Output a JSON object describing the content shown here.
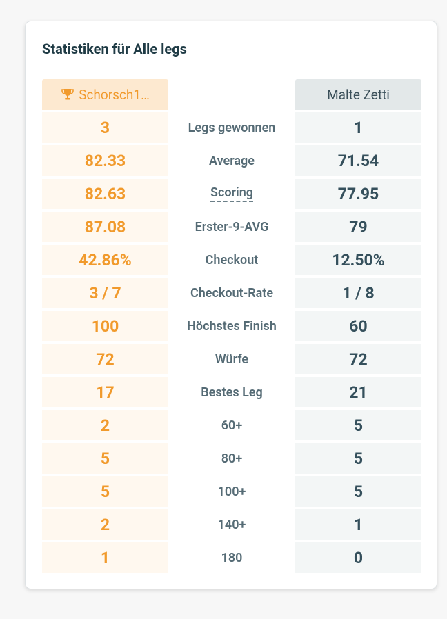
{
  "card": {
    "title": "Statistiken für Alle legs"
  },
  "players": {
    "left": "Schorsch1…",
    "right": "Malte Zetti"
  },
  "rows": [
    {
      "label": "Legs gewonnen",
      "left": "3",
      "right": "1"
    },
    {
      "label": "Average",
      "left": "82.33",
      "right": "71.54"
    },
    {
      "label": "Scoring",
      "left": "82.63",
      "right": "77.95"
    },
    {
      "label": "Erster-9-AVG",
      "left": "87.08",
      "right": "79"
    },
    {
      "label": "Checkout",
      "left": "42.86%",
      "right": "12.50%"
    },
    {
      "label": "Checkout-Rate",
      "left": "3 / 7",
      "right": "1 / 8"
    },
    {
      "label": "Höchstes Finish",
      "left": "100",
      "right": "60"
    },
    {
      "label": "Würfe",
      "left": "72",
      "right": "72"
    },
    {
      "label": "Bestes Leg",
      "left": "17",
      "right": "21"
    },
    {
      "label": "60+",
      "left": "2",
      "right": "5"
    },
    {
      "label": "80+",
      "left": "5",
      "right": "5"
    },
    {
      "label": "100+",
      "left": "5",
      "right": "5"
    },
    {
      "label": "140+",
      "left": "2",
      "right": "1"
    },
    {
      "label": "180",
      "left": "1",
      "right": "0"
    }
  ]
}
